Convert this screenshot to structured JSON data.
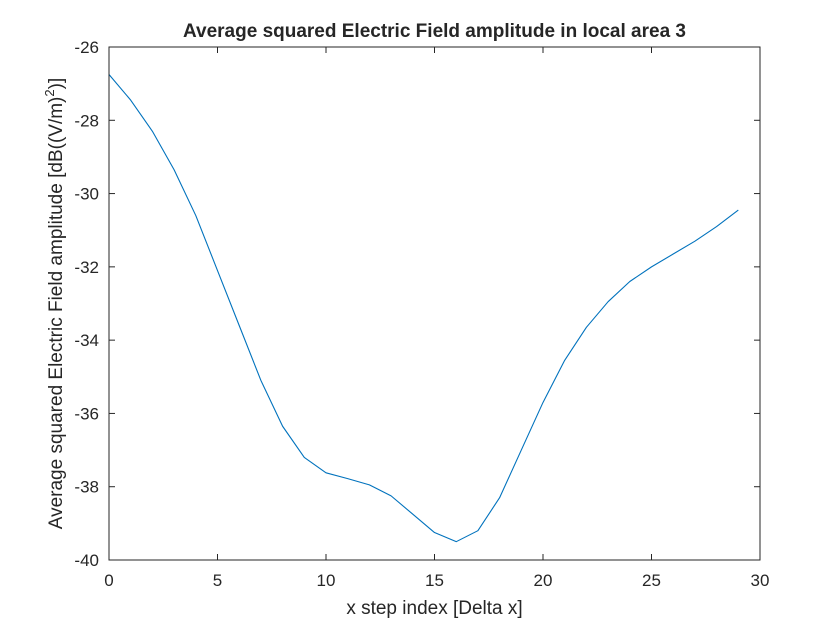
{
  "chart_data": {
    "type": "line",
    "title": "Average squared Electric Field amplitude in local area 3",
    "xlabel": "x step index [Delta x]",
    "ylabel": "Average squared Electric Field amplitude [dB((V/m)",
    "ylabel_superscript": "2",
    "ylabel_suffix": ")]",
    "xlim": [
      0,
      30
    ],
    "ylim": [
      -40,
      -26
    ],
    "xticks": [
      0,
      5,
      10,
      15,
      20,
      25,
      30
    ],
    "yticks": [
      -40,
      -38,
      -36,
      -34,
      -32,
      -30,
      -28,
      -26
    ],
    "grid": false,
    "box": true,
    "series": [
      {
        "color": "#0072BD",
        "x": [
          0,
          1,
          2,
          3,
          4,
          5,
          6,
          7,
          8,
          9,
          10,
          11,
          12,
          13,
          14,
          15,
          16,
          17,
          18,
          19,
          20,
          21,
          22,
          23,
          24,
          25,
          26,
          27,
          28,
          29
        ],
        "y": [
          -26.75,
          -27.45,
          -28.3,
          -29.35,
          -30.6,
          -32.1,
          -33.6,
          -35.1,
          -36.35,
          -37.2,
          -37.62,
          -37.78,
          -37.95,
          -38.25,
          -38.75,
          -39.25,
          -39.5,
          -39.2,
          -38.3,
          -37.0,
          -35.7,
          -34.55,
          -33.65,
          -32.95,
          -32.4,
          -32.0,
          -31.65,
          -31.3,
          -30.9,
          -30.45
        ]
      }
    ]
  }
}
